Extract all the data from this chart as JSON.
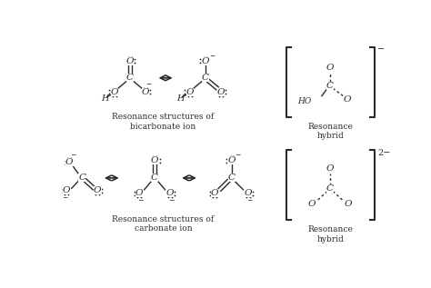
{
  "background_color": "#ffffff",
  "text_color": "#2a2a2a",
  "figure_width": 4.74,
  "figure_height": 3.17,
  "dpi": 100,
  "bicarbonate_caption": "Resonance structures of\nbicarbonate ion",
  "carbonate_caption": "Resonance structures of\ncarbonate ion",
  "hybrid_top_label": "Resonance\nhybrid",
  "hybrid_bottom_label": "Resonance\nhybrid",
  "charge_top": "−",
  "charge_bottom": "2−"
}
